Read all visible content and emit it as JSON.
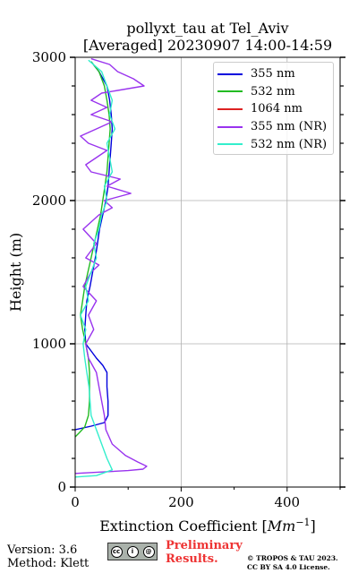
{
  "chart_data": {
    "type": "line",
    "title_line1": "pollyxt_tau at Tel_Aviv",
    "title_line2": "[Averaged] 20230907 14:00-14:59",
    "xlabel": "Extinction Coefficient [Mm⁻¹]",
    "ylabel": "Height (m)",
    "xlim": [
      0,
      500
    ],
    "ylim": [
      0,
      3000
    ],
    "xticks": [
      0,
      200,
      400
    ],
    "yticks": [
      0,
      1000,
      2000,
      3000
    ],
    "grid": true,
    "legend_position": "top-right",
    "series": [
      {
        "name": "355 nm",
        "color": "#0000dd",
        "points": [
          [
            0,
            400
          ],
          [
            30,
            425
          ],
          [
            55,
            450
          ],
          [
            62,
            500
          ],
          [
            62,
            600
          ],
          [
            60,
            700
          ],
          [
            60,
            800
          ],
          [
            52,
            850
          ],
          [
            40,
            900
          ],
          [
            30,
            950
          ],
          [
            20,
            1000
          ],
          [
            18,
            1100
          ],
          [
            20,
            1200
          ],
          [
            22,
            1300
          ],
          [
            28,
            1400
          ],
          [
            33,
            1500
          ],
          [
            38,
            1600
          ],
          [
            42,
            1700
          ],
          [
            46,
            1800
          ],
          [
            52,
            1900
          ],
          [
            58,
            2000
          ],
          [
            62,
            2100
          ],
          [
            64,
            2200
          ],
          [
            66,
            2300
          ],
          [
            68,
            2400
          ],
          [
            70,
            2500
          ],
          [
            68,
            2600
          ],
          [
            65,
            2700
          ],
          [
            60,
            2800
          ],
          [
            45,
            2900
          ],
          [
            30,
            2970
          ]
        ]
      },
      {
        "name": "532 nm",
        "color": "#22bb22",
        "points": [
          [
            0,
            350
          ],
          [
            8,
            380
          ],
          [
            18,
            420
          ],
          [
            25,
            500
          ],
          [
            27,
            600
          ],
          [
            27,
            700
          ],
          [
            27,
            800
          ],
          [
            25,
            900
          ],
          [
            20,
            1000
          ],
          [
            14,
            1100
          ],
          [
            10,
            1200
          ],
          [
            14,
            1300
          ],
          [
            18,
            1400
          ],
          [
            24,
            1500
          ],
          [
            30,
            1600
          ],
          [
            36,
            1700
          ],
          [
            42,
            1800
          ],
          [
            48,
            1900
          ],
          [
            52,
            2000
          ],
          [
            56,
            2100
          ],
          [
            60,
            2200
          ],
          [
            62,
            2300
          ],
          [
            64,
            2400
          ],
          [
            66,
            2500
          ],
          [
            64,
            2600
          ],
          [
            60,
            2700
          ],
          [
            55,
            2800
          ],
          [
            45,
            2900
          ],
          [
            30,
            2970
          ]
        ]
      },
      {
        "name": "1064 nm",
        "color": "#dd2222",
        "points": []
      },
      {
        "name": "355 nm (NR)",
        "color": "#9933ee",
        "points": [
          [
            0,
            95
          ],
          [
            50,
            105
          ],
          [
            100,
            115
          ],
          [
            128,
            125
          ],
          [
            135,
            145
          ],
          [
            118,
            175
          ],
          [
            95,
            220
          ],
          [
            70,
            300
          ],
          [
            58,
            400
          ],
          [
            55,
            500
          ],
          [
            50,
            600
          ],
          [
            45,
            700
          ],
          [
            40,
            800
          ],
          [
            25,
            900
          ],
          [
            20,
            1000
          ],
          [
            35,
            1100
          ],
          [
            25,
            1200
          ],
          [
            40,
            1300
          ],
          [
            15,
            1400
          ],
          [
            30,
            1500
          ],
          [
            45,
            1550
          ],
          [
            20,
            1600
          ],
          [
            40,
            1700
          ],
          [
            15,
            1800
          ],
          [
            45,
            1900
          ],
          [
            70,
            1950
          ],
          [
            55,
            2000
          ],
          [
            105,
            2050
          ],
          [
            60,
            2100
          ],
          [
            85,
            2150
          ],
          [
            30,
            2200
          ],
          [
            20,
            2250
          ],
          [
            40,
            2300
          ],
          [
            60,
            2350
          ],
          [
            25,
            2400
          ],
          [
            10,
            2450
          ],
          [
            40,
            2500
          ],
          [
            70,
            2550
          ],
          [
            30,
            2600
          ],
          [
            60,
            2650
          ],
          [
            30,
            2700
          ],
          [
            50,
            2750
          ],
          [
            130,
            2800
          ],
          [
            110,
            2850
          ],
          [
            80,
            2900
          ],
          [
            65,
            2950
          ],
          [
            30,
            2990
          ]
        ]
      },
      {
        "name": "532 nm (NR)",
        "color": "#33eecc",
        "points": [
          [
            0,
            70
          ],
          [
            40,
            80
          ],
          [
            70,
            120
          ],
          [
            60,
            200
          ],
          [
            50,
            300
          ],
          [
            40,
            400
          ],
          [
            30,
            500
          ],
          [
            28,
            600
          ],
          [
            26,
            700
          ],
          [
            22,
            800
          ],
          [
            18,
            900
          ],
          [
            15,
            1000
          ],
          [
            20,
            1100
          ],
          [
            10,
            1200
          ],
          [
            25,
            1300
          ],
          [
            20,
            1400
          ],
          [
            30,
            1500
          ],
          [
            40,
            1600
          ],
          [
            35,
            1700
          ],
          [
            45,
            1800
          ],
          [
            50,
            1900
          ],
          [
            60,
            2000
          ],
          [
            55,
            2100
          ],
          [
            70,
            2200
          ],
          [
            65,
            2300
          ],
          [
            60,
            2400
          ],
          [
            75,
            2500
          ],
          [
            65,
            2600
          ],
          [
            70,
            2700
          ],
          [
            60,
            2800
          ],
          [
            50,
            2900
          ],
          [
            25,
            2980
          ]
        ]
      }
    ]
  },
  "footer": {
    "version": "Version: 3.6",
    "method": "Method: Klett",
    "preliminary_line1": "Preliminary",
    "preliminary_line2": "Results.",
    "copyright_line1": "© TROPOS & TAU 2023.",
    "copyright_line2": "CC BY SA 4.0 License.",
    "cc_badge_text": "BY SA"
  }
}
